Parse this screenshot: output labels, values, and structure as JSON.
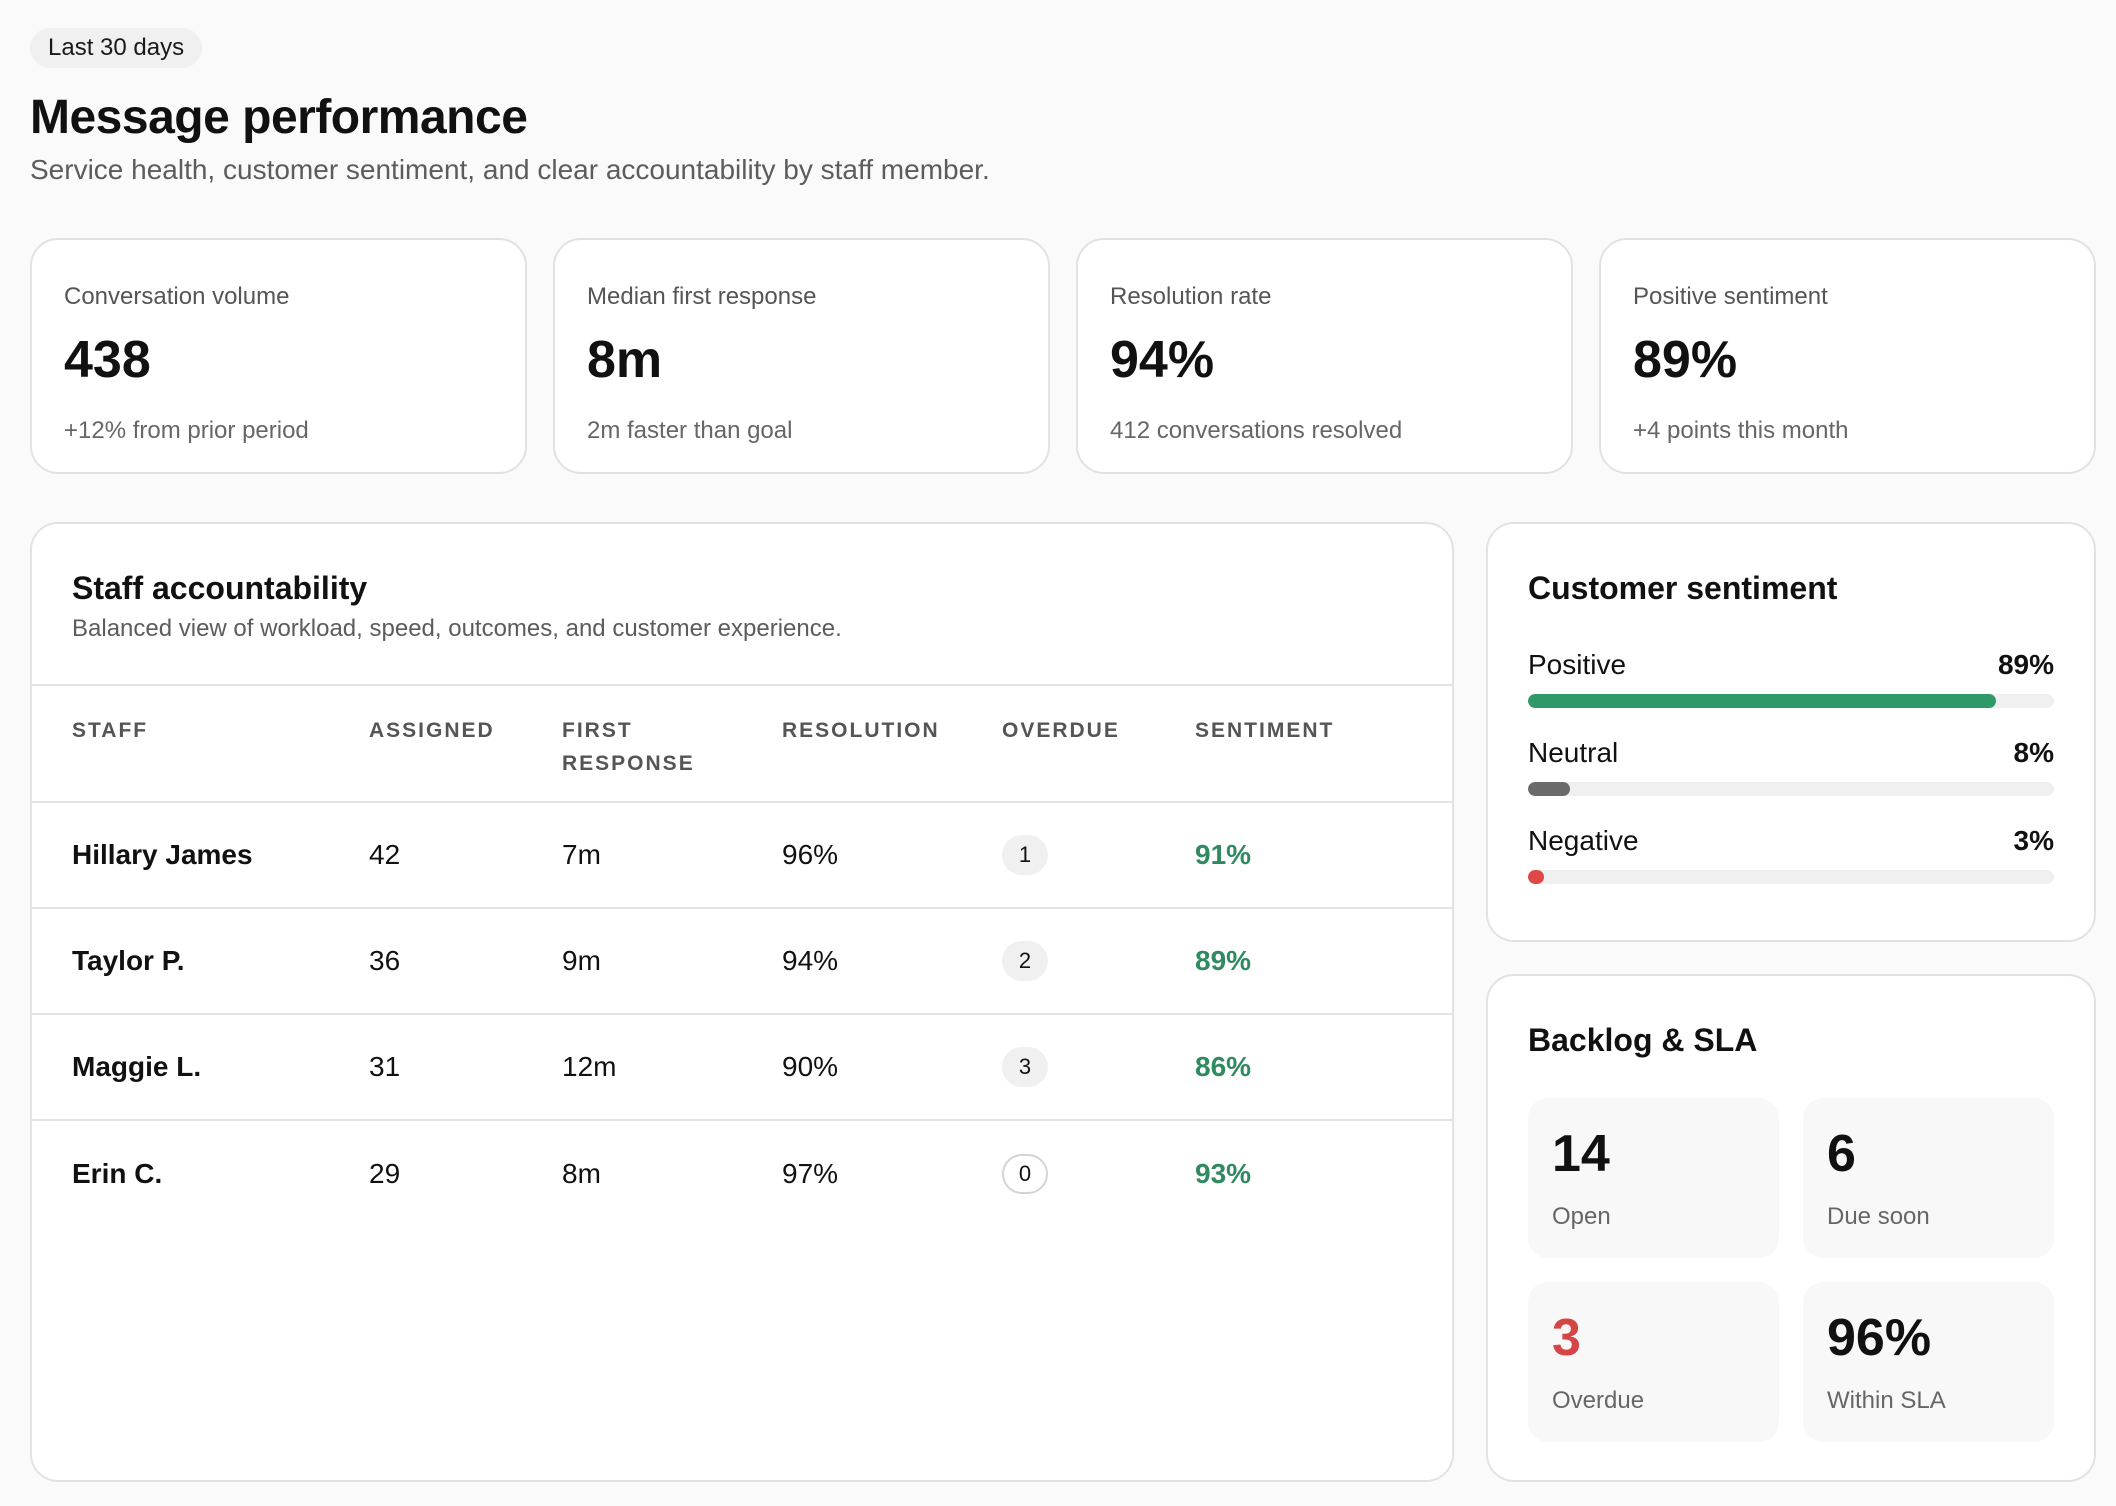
{
  "header": {
    "period": "Last 30 days",
    "title": "Message performance",
    "subtitle": "Service health, customer sentiment, and clear accountability by staff member."
  },
  "kpis": [
    {
      "label": "Conversation volume",
      "value": "438",
      "note": "+12% from prior period"
    },
    {
      "label": "Median first response",
      "value": "8m",
      "note": "2m faster than goal"
    },
    {
      "label": "Resolution rate",
      "value": "94%",
      "note": "412 conversations resolved"
    },
    {
      "label": "Positive sentiment",
      "value": "89%",
      "note": "+4 points this month"
    }
  ],
  "staff": {
    "title": "Staff accountability",
    "subtitle": "Balanced view of workload, speed, outcomes, and customer experience.",
    "columns": [
      "STAFF",
      "ASSIGNED",
      "FIRST RESPONSE",
      "RESOLUTION",
      "OVERDUE",
      "SENTIMENT"
    ],
    "rows": [
      {
        "name": "Hillary James",
        "assigned": "42",
        "first_response": "7m",
        "resolution": "96%",
        "overdue": "1",
        "sentiment": "91%"
      },
      {
        "name": "Taylor P.",
        "assigned": "36",
        "first_response": "9m",
        "resolution": "94%",
        "overdue": "2",
        "sentiment": "89%"
      },
      {
        "name": "Maggie L.",
        "assigned": "31",
        "first_response": "12m",
        "resolution": "90%",
        "overdue": "3",
        "sentiment": "86%"
      },
      {
        "name": "Erin C.",
        "assigned": "29",
        "first_response": "8m",
        "resolution": "97%",
        "overdue": "0",
        "sentiment": "93%"
      }
    ]
  },
  "sentiment": {
    "title": "Customer sentiment",
    "items": [
      {
        "label": "Positive",
        "value": "89%",
        "fraction": 0.89,
        "color": "#2f9a68"
      },
      {
        "label": "Neutral",
        "value": "8%",
        "fraction": 0.08,
        "color": "#6a6a6a"
      },
      {
        "label": "Negative",
        "value": "3%",
        "fraction": 0.03,
        "color": "#e04848"
      }
    ]
  },
  "backlog": {
    "title": "Backlog & SLA",
    "tiles": [
      {
        "value": "14",
        "label": "Open"
      },
      {
        "value": "6",
        "label": "Due soon"
      },
      {
        "value": "3",
        "label": "Overdue"
      },
      {
        "value": "96%",
        "label": "Within SLA"
      }
    ]
  },
  "colors": {
    "positive_text": "#2f8a5f",
    "alert_text": "#d64545"
  }
}
